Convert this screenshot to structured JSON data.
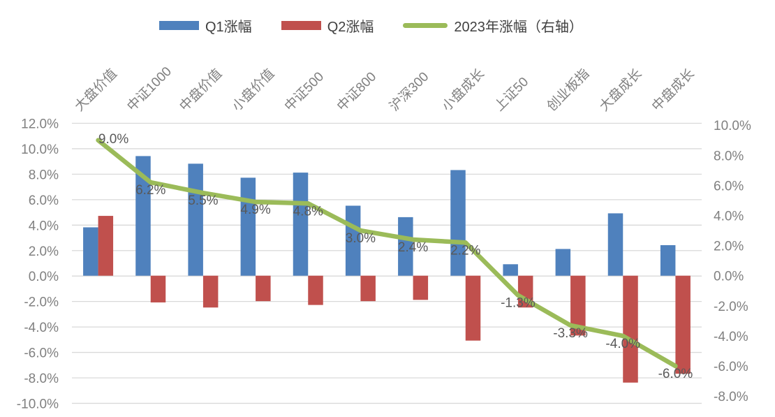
{
  "legend": {
    "items": [
      {
        "label": "Q1涨幅"
      },
      {
        "label": "Q2涨幅"
      },
      {
        "label": "2023年涨幅（右轴）"
      }
    ]
  },
  "colors": {
    "q1_bar": "#4F81BD",
    "q2_bar": "#C0504D",
    "line_2023": "#9BBB59",
    "gridline": "#D9D9D9",
    "axis_text": "#808080",
    "category_text": "#808080",
    "data_label_text": "#595959",
    "legend_text": "#404040",
    "background": "#FFFFFF"
  },
  "chart_data": {
    "type": "bar",
    "subtype": "bar+line combo, dual axis",
    "title": "",
    "xlabel": "",
    "ylabel": "",
    "grid": true,
    "legend_position": "top",
    "categories": [
      "大盘价值",
      "中证1000",
      "中盘价值",
      "小盘价值",
      "中证500",
      "中证800",
      "沪深300",
      "小盘成长",
      "上证50",
      "创业板指",
      "大盘成长",
      "中盘成长"
    ],
    "series": [
      {
        "name": "Q1涨幅",
        "type": "bar",
        "axis": "left",
        "color": "#4F81BD",
        "values": [
          3.8,
          9.4,
          8.8,
          7.7,
          8.1,
          5.5,
          4.6,
          8.3,
          0.9,
          2.1,
          4.9,
          2.4
        ]
      },
      {
        "name": "Q2涨幅",
        "type": "bar",
        "axis": "left",
        "color": "#C0504D",
        "values": [
          4.7,
          -2.1,
          -2.5,
          -2.0,
          -2.3,
          -2.0,
          -1.9,
          -5.1,
          -2.5,
          -4.7,
          -8.4,
          -7.7
        ]
      },
      {
        "name": "2023年涨幅（右轴）",
        "type": "line",
        "axis": "right",
        "color": "#9BBB59",
        "values": [
          9.0,
          6.2,
          5.5,
          4.9,
          4.8,
          3.0,
          2.4,
          2.2,
          -1.3,
          -3.3,
          -4.0,
          -6.0
        ],
        "labels": [
          "9.0%",
          "6.2%",
          "5.5%",
          "4.9%",
          "4.8%",
          "3.0%",
          "2.4%",
          "2.2%",
          "-1.3%",
          "-3.3%",
          "-4.0%",
          "-6.0%"
        ]
      }
    ],
    "left_axis": {
      "min": -10,
      "max": 12,
      "step": 2,
      "ticks": [
        "12.0%",
        "10.0%",
        "8.0%",
        "6.0%",
        "4.0%",
        "2.0%",
        "0.0%",
        "-2.0%",
        "-4.0%",
        "-6.0%",
        "-8.0%",
        "-10.0%"
      ]
    },
    "right_axis": {
      "min": -8,
      "max": 10,
      "step": 2,
      "ticks": [
        "10.0%",
        "8.0%",
        "6.0%",
        "4.0%",
        "2.0%",
        "0.0%",
        "-2.0%",
        "-4.0%",
        "-6.0%",
        "-8.0%"
      ]
    }
  }
}
